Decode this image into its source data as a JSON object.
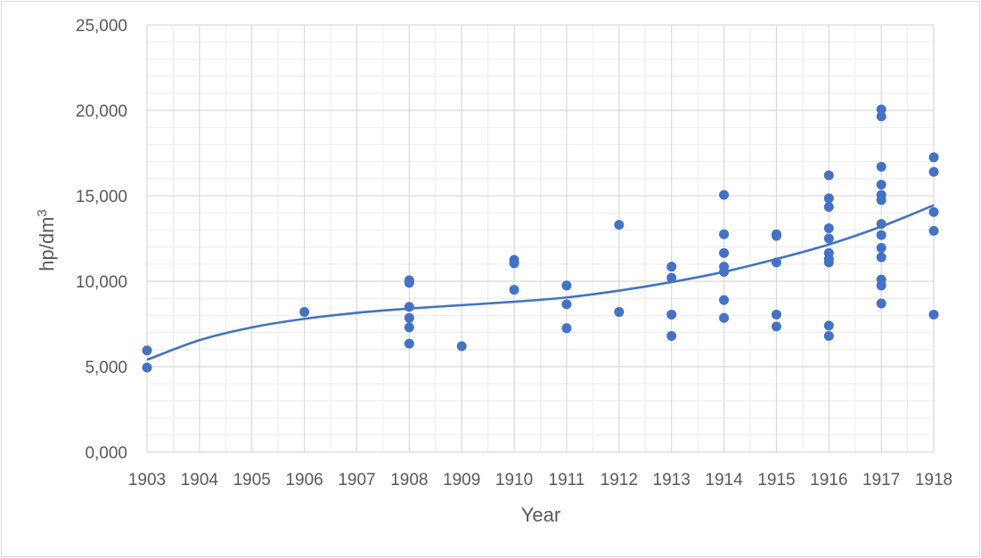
{
  "chart_data": {
    "type": "scatter",
    "title": "",
    "xlabel": "Year",
    "ylabel": "hp/dm",
    "ylabel_superscript": "3",
    "xlim": [
      1903,
      1918
    ],
    "ylim": [
      0,
      25000
    ],
    "x_ticks": [
      "1903",
      "1904",
      "1905",
      "1906",
      "1907",
      "1908",
      "1909",
      "1910",
      "1911",
      "1912",
      "1913",
      "1914",
      "1915",
      "1916",
      "1917",
      "1918"
    ],
    "y_ticks": [
      {
        "value": 0,
        "label": "0,000"
      },
      {
        "value": 5000,
        "label": "5,000"
      },
      {
        "value": 10000,
        "label": "10,000"
      },
      {
        "value": 15000,
        "label": "15,000"
      },
      {
        "value": 20000,
        "label": "20,000"
      },
      {
        "value": 25000,
        "label": "25,000"
      }
    ],
    "grid": {
      "major": true,
      "minor": true
    },
    "series": [
      {
        "points": [
          [
            1903,
            5950
          ],
          [
            1903,
            4950
          ],
          [
            1906,
            8200
          ],
          [
            1908,
            10050
          ],
          [
            1908,
            9900
          ],
          [
            1908,
            8500
          ],
          [
            1908,
            7850
          ],
          [
            1908,
            7300
          ],
          [
            1908,
            6350
          ],
          [
            1909,
            6200
          ],
          [
            1910,
            11250
          ],
          [
            1910,
            11050
          ],
          [
            1910,
            9500
          ],
          [
            1911,
            9750
          ],
          [
            1911,
            8650
          ],
          [
            1911,
            7250
          ],
          [
            1912,
            13300
          ],
          [
            1912,
            8200
          ],
          [
            1913,
            10850
          ],
          [
            1913,
            10200
          ],
          [
            1913,
            8050
          ],
          [
            1913,
            6800
          ],
          [
            1914,
            15050
          ],
          [
            1914,
            12750
          ],
          [
            1914,
            11650
          ],
          [
            1914,
            10850
          ],
          [
            1914,
            10550
          ],
          [
            1914,
            8900
          ],
          [
            1914,
            7850
          ],
          [
            1915,
            12750
          ],
          [
            1915,
            12650
          ],
          [
            1915,
            11100
          ],
          [
            1915,
            8050
          ],
          [
            1915,
            7350
          ],
          [
            1916,
            16200
          ],
          [
            1916,
            14850
          ],
          [
            1916,
            14350
          ],
          [
            1916,
            13100
          ],
          [
            1916,
            12500
          ],
          [
            1916,
            11650
          ],
          [
            1916,
            11300
          ],
          [
            1916,
            11100
          ],
          [
            1916,
            7400
          ],
          [
            1916,
            6800
          ],
          [
            1917,
            20050
          ],
          [
            1917,
            19650
          ],
          [
            1917,
            16700
          ],
          [
            1917,
            15650
          ],
          [
            1917,
            15050
          ],
          [
            1917,
            14750
          ],
          [
            1917,
            13350
          ],
          [
            1917,
            12700
          ],
          [
            1917,
            11950
          ],
          [
            1917,
            11400
          ],
          [
            1917,
            10100
          ],
          [
            1917,
            9750
          ],
          [
            1917,
            8700
          ],
          [
            1918,
            17250
          ],
          [
            1918,
            16400
          ],
          [
            1918,
            14050
          ],
          [
            1918,
            12950
          ],
          [
            1918,
            8050
          ]
        ]
      },
      {
        "type": "line",
        "points": [
          [
            1903,
            5400
          ],
          [
            1904,
            6550
          ],
          [
            1905,
            7300
          ],
          [
            1906,
            7800
          ],
          [
            1907,
            8150
          ],
          [
            1908,
            8400
          ],
          [
            1909,
            8600
          ],
          [
            1910,
            8800
          ],
          [
            1911,
            9050
          ],
          [
            1912,
            9450
          ],
          [
            1913,
            9950
          ],
          [
            1914,
            10550
          ],
          [
            1915,
            11300
          ],
          [
            1916,
            12150
          ],
          [
            1917,
            13200
          ],
          [
            1918,
            14450
          ]
        ]
      }
    ],
    "colors": {
      "series": "#4472c4",
      "grid": "#d9d9d9",
      "axis_text": "#595959"
    }
  }
}
